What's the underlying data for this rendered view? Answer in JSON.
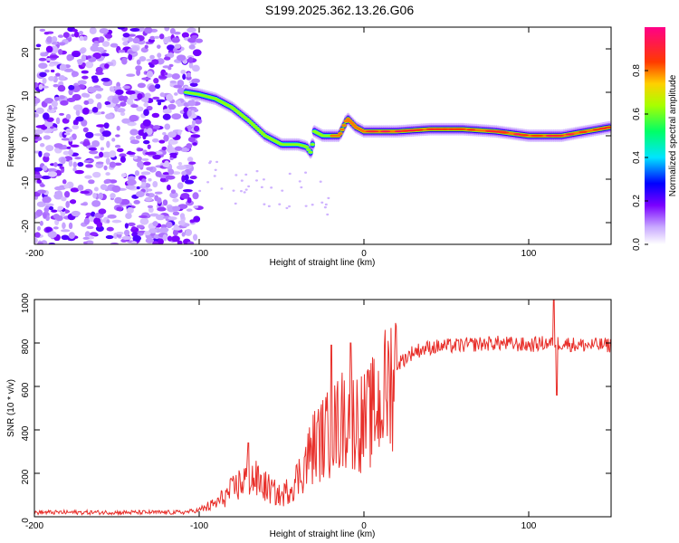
{
  "title": "S199.2025.362.13.26.G06",
  "chart_data": [
    {
      "type": "heatmap",
      "name": "spectrogram",
      "xlabel": "Height of straight line (km)",
      "ylabel": "Frequency (Hz)",
      "xlim": [
        -200,
        150
      ],
      "ylim": [
        -25,
        25
      ],
      "xticks": [
        -200,
        -100,
        0,
        100
      ],
      "yticks": [
        -20,
        -10,
        0,
        10,
        20
      ],
      "colorbar": {
        "label": "Normalized spectral amplitude",
        "range": [
          0,
          1
        ],
        "ticks": [
          0.0,
          0.2,
          0.4,
          0.6,
          0.8
        ]
      },
      "ridge": {
        "x": [
          -108,
          -100,
          -90,
          -80,
          -70,
          -60,
          -50,
          -40,
          -35,
          -32,
          -30,
          -25,
          -20,
          -15,
          -10,
          -5,
          0,
          20,
          40,
          60,
          80,
          100,
          120,
          150
        ],
        "y": [
          10,
          9.5,
          8.5,
          6.5,
          3.5,
          0,
          -2,
          -2,
          -2.5,
          -4,
          1,
          0,
          0,
          0,
          4,
          2,
          1,
          1,
          1.5,
          1.5,
          1,
          0,
          0,
          2
        ]
      },
      "noise_region": [
        -200,
        -100
      ]
    },
    {
      "type": "line",
      "name": "snr",
      "xlabel": "Height of straight line (km)",
      "ylabel": "SNR (10 * v/v)",
      "xlim": [
        -200,
        150
      ],
      "ylim": [
        0,
        1000
      ],
      "xticks": [
        -200,
        -100,
        0,
        100
      ],
      "yticks": [
        0,
        200,
        400,
        600,
        800,
        1000
      ],
      "color": "#e8302b",
      "envelope": {
        "x": [
          -200,
          -110,
          -100,
          -90,
          -80,
          -70,
          -60,
          -50,
          -40,
          -30,
          -20,
          -10,
          0,
          10,
          20,
          30,
          40,
          60,
          80,
          100,
          110,
          120,
          130,
          150
        ],
        "y": [
          20,
          20,
          30,
          60,
          120,
          190,
          140,
          90,
          180,
          330,
          390,
          470,
          430,
          520,
          700,
          760,
          780,
          790,
          800,
          790,
          800,
          800,
          790,
          790
        ]
      },
      "spikes": [
        {
          "x": -70,
          "y": 340
        },
        {
          "x": -20,
          "y": 790
        },
        {
          "x": -8,
          "y": 800
        },
        {
          "x": 115,
          "y": 1000
        },
        {
          "x": 117,
          "y": 560
        }
      ]
    }
  ]
}
